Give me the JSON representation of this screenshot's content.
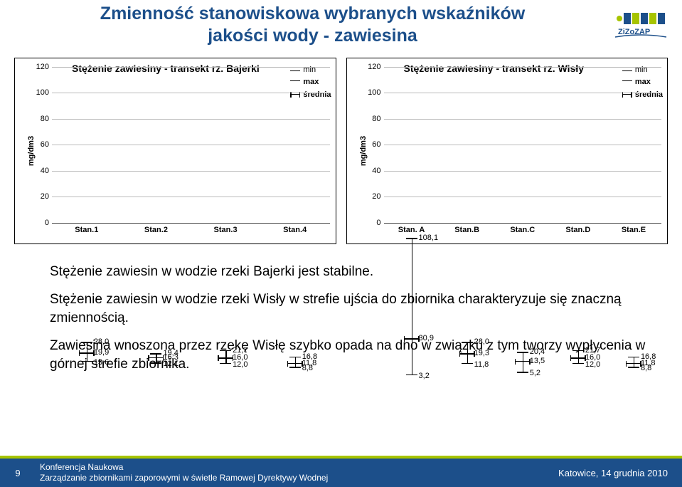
{
  "title_line1": "Zmienność stanowiskowa wybranych wskaźników",
  "title_line2": "jakości wody - zawiesina",
  "logo_text": "ZiZoZAP",
  "chart_left": {
    "title": "Stężenie zawiesiny - transekt rz. Bajerki",
    "ylabel": "mg/dm3",
    "ylim": [
      0,
      120
    ],
    "ytick_step": 20,
    "stations": [
      {
        "name": "Stan.1",
        "min": 13.6,
        "mean": 19.9,
        "max": 28.0,
        "labels": [
          "28,0",
          "19,9",
          "13,6"
        ]
      },
      {
        "name": "Stan.2",
        "min": 12.1,
        "mean": 16.3,
        "max": 19.4,
        "labels": [
          "19,4",
          "16,3",
          "12,1"
        ]
      },
      {
        "name": "Stan.3",
        "min": 12.0,
        "mean": 16.0,
        "max": 21.7,
        "labels": [
          "21,7",
          "16,0",
          "12,0"
        ]
      },
      {
        "name": "Stan.4",
        "min": 8.8,
        "mean": 11.8,
        "max": 16.8,
        "labels": [
          "16,8",
          "11,8",
          "8,8"
        ]
      }
    ]
  },
  "chart_right": {
    "title": "Stężenie zawiesiny - transekt rz. Wisły",
    "ylabel": "mg/dm3",
    "ylim": [
      0,
      120
    ],
    "ytick_step": 20,
    "stations": [
      {
        "name": "Stan. A",
        "min": 3.2,
        "mean": 30.9,
        "max": 108.1,
        "labels": [
          "108,1",
          "30,9",
          "3,2"
        ]
      },
      {
        "name": "Stan.B",
        "min": 11.8,
        "mean": 19.3,
        "max": 28.0,
        "labels": [
          "28,0",
          "19,3",
          "11,8"
        ]
      },
      {
        "name": "Stan.C",
        "min": 5.2,
        "mean": 13.5,
        "max": 20.4,
        "labels": [
          "20,4",
          "13,5",
          "5,2"
        ]
      },
      {
        "name": "Stan.D",
        "min": 12.0,
        "mean": 16.0,
        "max": 21.7,
        "labels": [
          "21,7",
          "16,0",
          "12,0"
        ]
      },
      {
        "name": "Stan.E",
        "min": 8.8,
        "mean": 11.8,
        "max": 16.8,
        "labels": [
          "16,8",
          "11,8",
          "8,8"
        ]
      }
    ]
  },
  "legend": {
    "min": "min",
    "max": "max",
    "mean": "średnia"
  },
  "body_text": {
    "p1": "Stężenie zawiesin w wodzie rzeki Bajerki jest stabilne.",
    "p2": "Stężenie zawiesin w wodzie rzeki Wisły w strefie ujścia do zbiornika charakteryzuje się znaczną zmiennością.",
    "p3": "Zawiesina wnoszona przez rzekę Wisłę szybko opada na dno w związku z tym tworzy wypłycenia w górnej strefie zbiornika."
  },
  "footer": {
    "page": "9",
    "line1": "Konferencja Naukowa",
    "line2": "Zarządzanie zbiornikami zaporowymi w świetle Ramowej Dyrektywy Wodnej",
    "right": "Katowice, 14 grudnia 2010"
  },
  "colors": {
    "title": "#1c4f8a",
    "footer_bg": "#1c4f8a",
    "accent": "#a7c400",
    "grid": "#bbbbbb",
    "text": "#000000",
    "bg": "#ffffff"
  }
}
